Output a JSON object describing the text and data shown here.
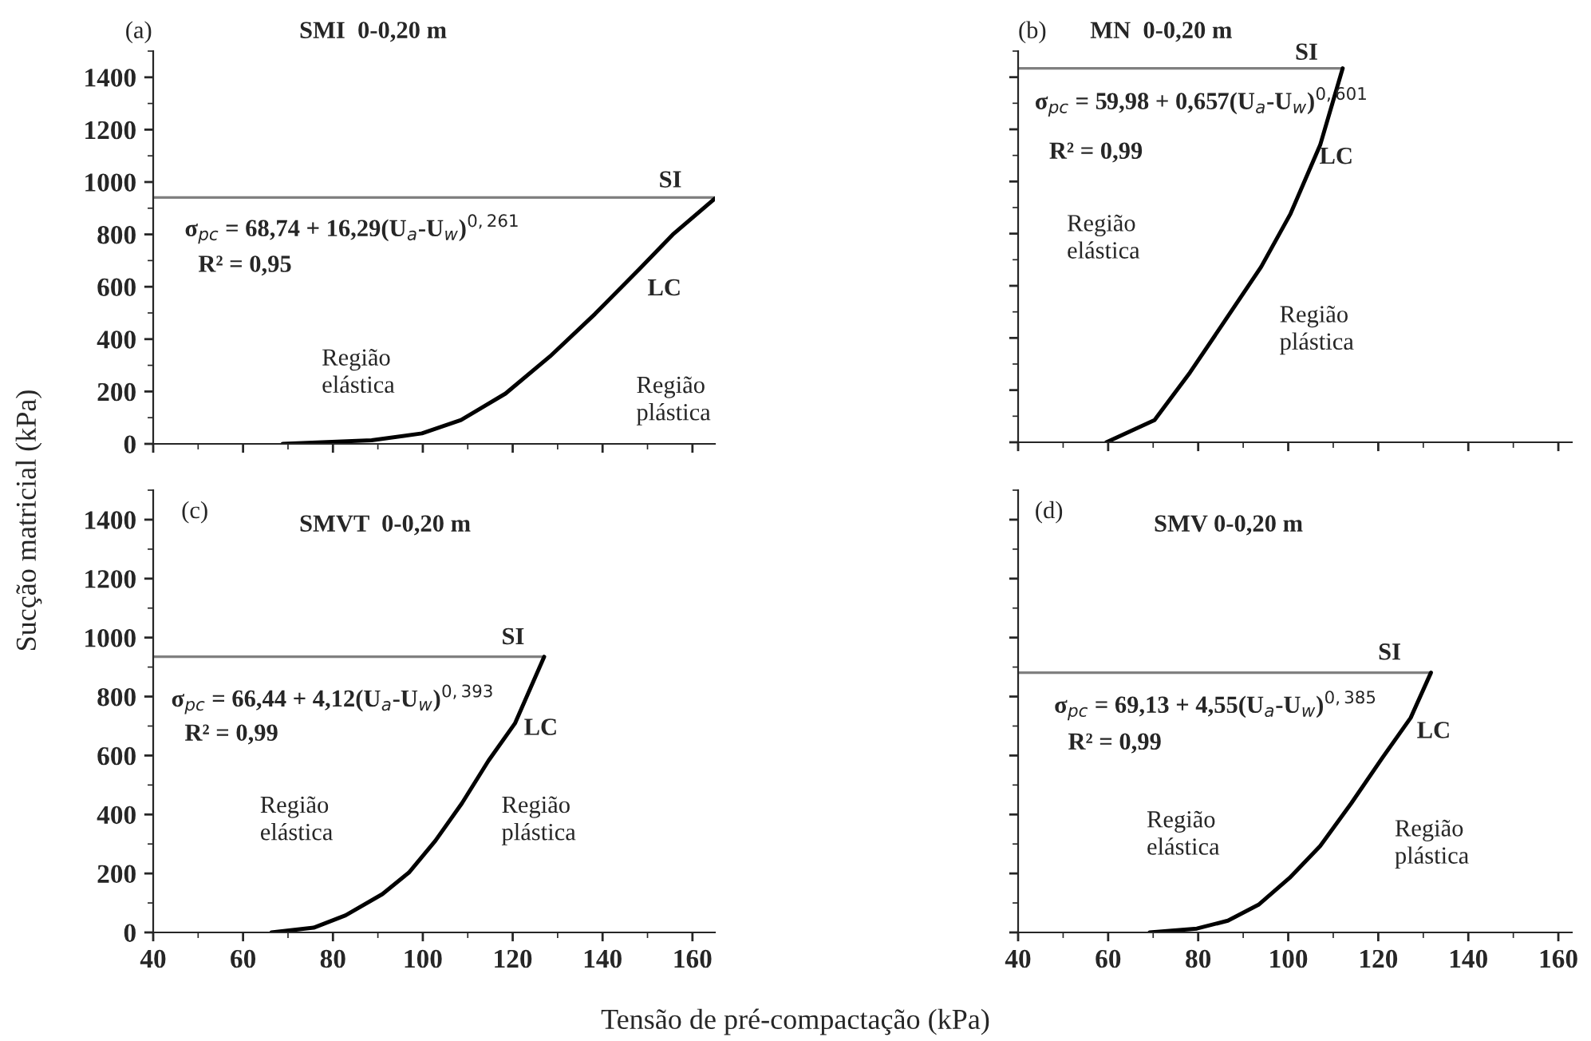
{
  "chart_data": [
    {
      "type": "line",
      "title": "SMI  0-0,20 m",
      "ylabel": "Sucção matricial (kPa)",
      "xlim": [
        40,
        165
      ],
      "ylim": [
        0,
        1500
      ],
      "xticks": [
        40,
        60,
        80,
        100,
        120,
        140,
        160
      ],
      "yticks": [
        0,
        200,
        400,
        600,
        800,
        1000,
        1200,
        1400
      ],
      "tick_labels": "y",
      "series": [
        {
          "color": "#808080",
          "x": [
            40,
            165
          ],
          "values": [
            941,
            941
          ]
        },
        {
          "color": "#000000",
          "x": [
            68.8,
            88.6,
            99.8,
            108.5,
            118.4,
            128.3,
            138.3,
            148.2,
            155.6,
            165
          ],
          "values": [
            0,
            14,
            40,
            91,
            192,
            334,
            496,
            668,
            799,
            937
          ]
        }
      ],
      "annotations": [
        "(a)",
        "SI",
        "σ$_{pc}$ = 68,74 + 16,29(U$_{a}$-U$_{w}$)$^{0,261}$",
        "R² = 0,95",
        "LC",
        "Região\nelástica",
        "Região\nplástica"
      ]
    },
    {
      "type": "line",
      "title": "MN  0-0,20 m",
      "xlim": [
        40,
        163
      ],
      "ylim": [
        0,
        1500
      ],
      "xticks": [
        40,
        60,
        80,
        100,
        120,
        140,
        160
      ],
      "yticks": [
        0,
        200,
        400,
        600,
        800,
        1000,
        1200,
        1400
      ],
      "tick_labels": false,
      "series": [
        {
          "color": "#808080",
          "x": [
            40,
            112.1
          ],
          "values": [
            1434,
            1434
          ]
        },
        {
          "color": "#000000",
          "x": [
            59.6,
            70.3,
            78.2,
            86.1,
            94,
            100.5,
            107.1,
            112.1
          ],
          "values": [
            0,
            85,
            268,
            470,
            673,
            876,
            1140,
            1434
          ]
        }
      ],
      "annotations": [
        "(b)",
        "SI",
        "σ$_{pc}$ = 59,98 + 0,657(U$_{a}$-U$_{w}$)$^{0,601}$",
        "R² = 0,99",
        "LC",
        "Região\nelástica",
        "Região\nplástica"
      ]
    },
    {
      "type": "line",
      "title": "SMVT  0-0,20 m",
      "xlabel": "Tensão de pré-compactação (kPa)",
      "xlim": [
        40,
        165
      ],
      "ylim": [
        0,
        1500
      ],
      "xticks": [
        40,
        60,
        80,
        100,
        120,
        140,
        160
      ],
      "yticks": [
        0,
        200,
        400,
        600,
        800,
        1000,
        1200,
        1400
      ],
      "series": [
        {
          "color": "#808080",
          "x": [
            40,
            127
          ],
          "values": [
            935,
            935
          ]
        },
        {
          "color": "#000000",
          "x": [
            66.3,
            75.7,
            82.8,
            91,
            96.9,
            102.8,
            108.7,
            114.6,
            120.5,
            127
          ],
          "values": [
            0,
            16,
            58,
            130,
            203,
            311,
            438,
            582,
            709,
            935
          ]
        }
      ],
      "annotations": [
        "(c)",
        "SI",
        "σ$_{pc}$ = 66,44 + 4,12(U$_{a}$-U$_{w}$)$^{0,393}$",
        "R² = 0,99",
        "LC",
        "Região\nelástica",
        "Região\nplástica"
      ]
    },
    {
      "type": "line",
      "title": "SMV 0-0,20 m",
      "xlim": [
        40,
        163
      ],
      "ylim": [
        0,
        1500
      ],
      "xticks": [
        40,
        60,
        80,
        100,
        120,
        140,
        160
      ],
      "yticks": [
        0,
        200,
        400,
        600,
        800,
        1000,
        1200,
        1400
      ],
      "tick_labels": "x",
      "series": [
        {
          "color": "#808080",
          "x": [
            40,
            131.7
          ],
          "values": [
            881,
            881
          ]
        },
        {
          "color": "#000000",
          "x": [
            69.2,
            79.7,
            86.6,
            93.4,
            100.3,
            107.1,
            114,
            120.9,
            127.2,
            131.7
          ],
          "values": [
            0,
            13,
            40,
            94,
            185,
            293,
            438,
            592,
            728,
            881
          ]
        }
      ],
      "annotations": [
        "(d)",
        "SI",
        "σ$_{pc}$ = 69,13 + 4,55(U$_{a}$-U$_{w}$)$^{0,385}$",
        "R² = 0,99",
        "LC",
        "Região\nelástica",
        "Região\nplástica"
      ]
    }
  ]
}
